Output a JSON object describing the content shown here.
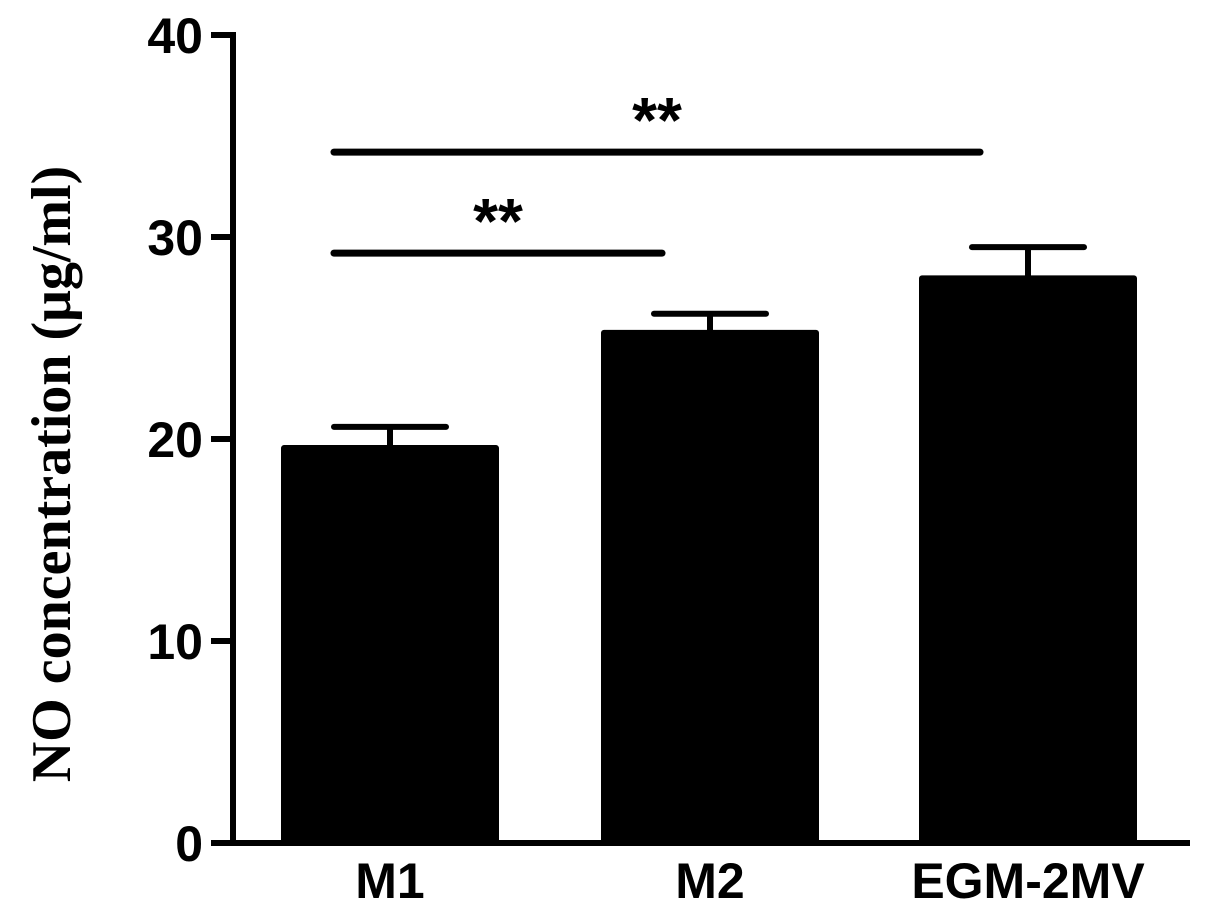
{
  "chart_data": {
    "type": "bar",
    "categories": [
      "M1",
      "M2",
      "EGM-2MV"
    ],
    "values": [
      19.7,
      25.4,
      28.1
    ],
    "error_upper": [
      20.6,
      26.2,
      29.5
    ],
    "ylabel": "NO concentration (μg/ml)",
    "xlabel": "",
    "ylim": [
      0,
      40
    ],
    "yticks": [
      0,
      10,
      20,
      30,
      40
    ],
    "bar_color": "#000000",
    "grid": false,
    "significance": [
      {
        "from": "M1",
        "to": "M2",
        "label": "**",
        "y": 29.2
      },
      {
        "from": "M1",
        "to": "EGM-2MV",
        "label": "**",
        "y": 34.2
      }
    ]
  }
}
